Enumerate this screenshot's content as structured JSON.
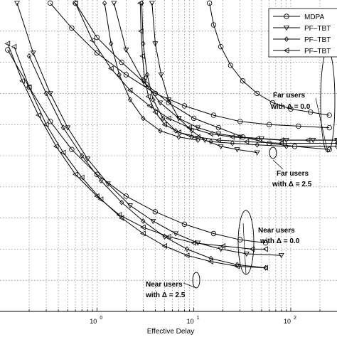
{
  "chart_data": {
    "type": "line",
    "xlabel": "Effective Delay",
    "x_scale": "log",
    "xlim": [
      0.1,
      300
    ],
    "x_ticks": [
      {
        "value": 1,
        "base": "10",
        "exp": "0"
      },
      {
        "value": 10,
        "base": "10",
        "exp": "1"
      },
      {
        "value": 100,
        "base": "10",
        "exp": "2"
      }
    ],
    "ylim": [
      0,
      1
    ],
    "y_gridlines": [
      0.1,
      0.2,
      0.3,
      0.4,
      0.5,
      0.6,
      0.7,
      0.8,
      0.9
    ],
    "grid": true,
    "legend": {
      "position": "top-right",
      "entries": [
        {
          "label": "MDPA",
          "marker": "circle"
        },
        {
          "label": "PF–TBT",
          "marker": "triangle-down"
        },
        {
          "label": "PF–TBT",
          "marker": "diamond"
        },
        {
          "label": "PF–TBT",
          "marker": "triangle-left"
        }
      ]
    },
    "annotations": [
      {
        "id": "far00",
        "line1": "Far users",
        "line2": "with Δ = 0.0"
      },
      {
        "id": "far25",
        "line1": "Far users",
        "line2": "with Δ = 2.5"
      },
      {
        "id": "near00",
        "line1": "Near users",
        "line2": "with Δ = 0.0"
      },
      {
        "id": "near25",
        "line1": "Near users",
        "line2": "with Δ = 2.5"
      }
    ],
    "series": [
      {
        "marker": "circle",
        "group": "far-0.0",
        "x": [
          0.33,
          0.55,
          1.0,
          2.0,
          4.0,
          8.0,
          16,
          30,
          60,
          120,
          250
        ],
        "y": [
          0.99,
          0.91,
          0.83,
          0.76,
          0.7,
          0.66,
          0.63,
          0.61,
          0.6,
          0.595,
          0.59
        ]
      },
      {
        "marker": "circle",
        "group": "near-0.0",
        "x": [
          0.12,
          0.2,
          0.33,
          0.55,
          1.0,
          2.0,
          4.0,
          8.0,
          16,
          30,
          55
        ],
        "y": [
          0.84,
          0.72,
          0.61,
          0.52,
          0.44,
          0.37,
          0.32,
          0.28,
          0.25,
          0.23,
          0.22
        ]
      },
      {
        "marker": "circle",
        "group": "mid",
        "x": [
          0.6,
          1.0,
          1.8,
          3.2,
          5.5,
          10,
          18,
          32,
          60,
          110,
          250
        ],
        "y": [
          0.99,
          0.88,
          0.8,
          0.73,
          0.67,
          0.62,
          0.59,
          0.56,
          0.54,
          0.53,
          0.52
        ]
      },
      {
        "marker": "circle",
        "group": "far-2.5",
        "x": [
          14.5,
          16,
          19,
          24,
          32,
          45,
          65,
          100,
          160,
          250
        ],
        "y": [
          0.99,
          0.92,
          0.85,
          0.79,
          0.74,
          0.7,
          0.67,
          0.65,
          0.64,
          0.63
        ]
      },
      {
        "marker": "triangle-down",
        "group": "far-0.0",
        "x": [
          1.5,
          2.0,
          3.0,
          4.5,
          7.0,
          11,
          18,
          30,
          50,
          90,
          170,
          300
        ],
        "y": [
          0.99,
          0.84,
          0.74,
          0.67,
          0.62,
          0.59,
          0.57,
          0.56,
          0.555,
          0.55,
          0.55,
          0.55
        ]
      },
      {
        "marker": "triangle-down",
        "group": "near-0.0",
        "x": [
          0.15,
          0.22,
          0.33,
          0.5,
          0.8,
          1.3,
          2.2,
          3.8,
          6.5,
          11,
          19,
          35,
          80
        ],
        "y": [
          0.99,
          0.83,
          0.7,
          0.59,
          0.49,
          0.41,
          0.34,
          0.29,
          0.25,
          0.22,
          0.2,
          0.185,
          0.18
        ]
      },
      {
        "marker": "triangle-down",
        "group": "mid",
        "x": [
          3.7,
          4.0,
          4.6,
          5.5,
          7.0,
          9.5,
          13,
          19,
          28,
          45
        ],
        "y": [
          0.99,
          0.86,
          0.76,
          0.68,
          0.62,
          0.58,
          0.55,
          0.53,
          0.52,
          0.51
        ]
      },
      {
        "marker": "diamond",
        "group": "far-2.5",
        "x": [
          2.9,
          3.0,
          3.3,
          3.8,
          4.8,
          6.5,
          9.5,
          15,
          25,
          45,
          90,
          300
        ],
        "y": [
          0.99,
          0.86,
          0.76,
          0.68,
          0.62,
          0.58,
          0.56,
          0.545,
          0.54,
          0.535,
          0.53,
          0.53
        ]
      },
      {
        "marker": "diamond",
        "group": "near-2.5",
        "x": [
          0.2,
          0.3,
          0.45,
          0.7,
          1.1,
          1.8,
          3.0,
          5.0,
          8.5,
          15,
          28,
          55
        ],
        "y": [
          0.82,
          0.7,
          0.59,
          0.5,
          0.42,
          0.35,
          0.29,
          0.24,
          0.2,
          0.17,
          0.15,
          0.14
        ]
      },
      {
        "marker": "diamond",
        "group": "mid",
        "x": [
          1.2,
          1.4,
          1.7,
          2.2,
          3.0,
          4.5,
          7.0,
          11
        ],
        "y": [
          0.99,
          0.86,
          0.76,
          0.68,
          0.62,
          0.58,
          0.56,
          0.55
        ]
      },
      {
        "marker": "triangle-left",
        "group": "far-0.0",
        "x": [
          0.6,
          0.9,
          1.4,
          2.2,
          3.5,
          5.5,
          9.0,
          15,
          25,
          45,
          80,
          150,
          300
        ],
        "y": [
          0.99,
          0.87,
          0.78,
          0.71,
          0.66,
          0.62,
          0.59,
          0.57,
          0.56,
          0.555,
          0.55,
          0.55,
          0.55
        ]
      },
      {
        "marker": "triangle-left",
        "group": "far-2.5",
        "x": [
          2.8,
          2.85,
          2.95,
          3.1,
          3.4,
          4.0,
          5.0,
          7.0,
          11,
          18,
          35,
          80,
          300
        ],
        "y": [
          0.99,
          0.9,
          0.82,
          0.75,
          0.69,
          0.64,
          0.6,
          0.575,
          0.56,
          0.55,
          0.545,
          0.54,
          0.54
        ]
      },
      {
        "marker": "triangle-left",
        "group": "near-0.0",
        "x": [
          0.12,
          0.17,
          0.25,
          0.38,
          0.6,
          1.0,
          1.7,
          3.0,
          5.5,
          10,
          20,
          40,
          55
        ],
        "y": [
          0.86,
          0.74,
          0.63,
          0.53,
          0.44,
          0.37,
          0.31,
          0.27,
          0.24,
          0.22,
          0.21,
          0.2,
          0.2
        ]
      },
      {
        "marker": "triangle-left",
        "group": "near-2.5",
        "x": [
          0.14,
          0.2,
          0.3,
          0.45,
          0.7,
          1.1,
          1.8,
          3.0,
          5.0,
          8.5,
          15,
          28,
          55
        ],
        "y": [
          0.85,
          0.72,
          0.6,
          0.51,
          0.43,
          0.36,
          0.3,
          0.25,
          0.21,
          0.18,
          0.16,
          0.145,
          0.14
        ]
      }
    ]
  }
}
